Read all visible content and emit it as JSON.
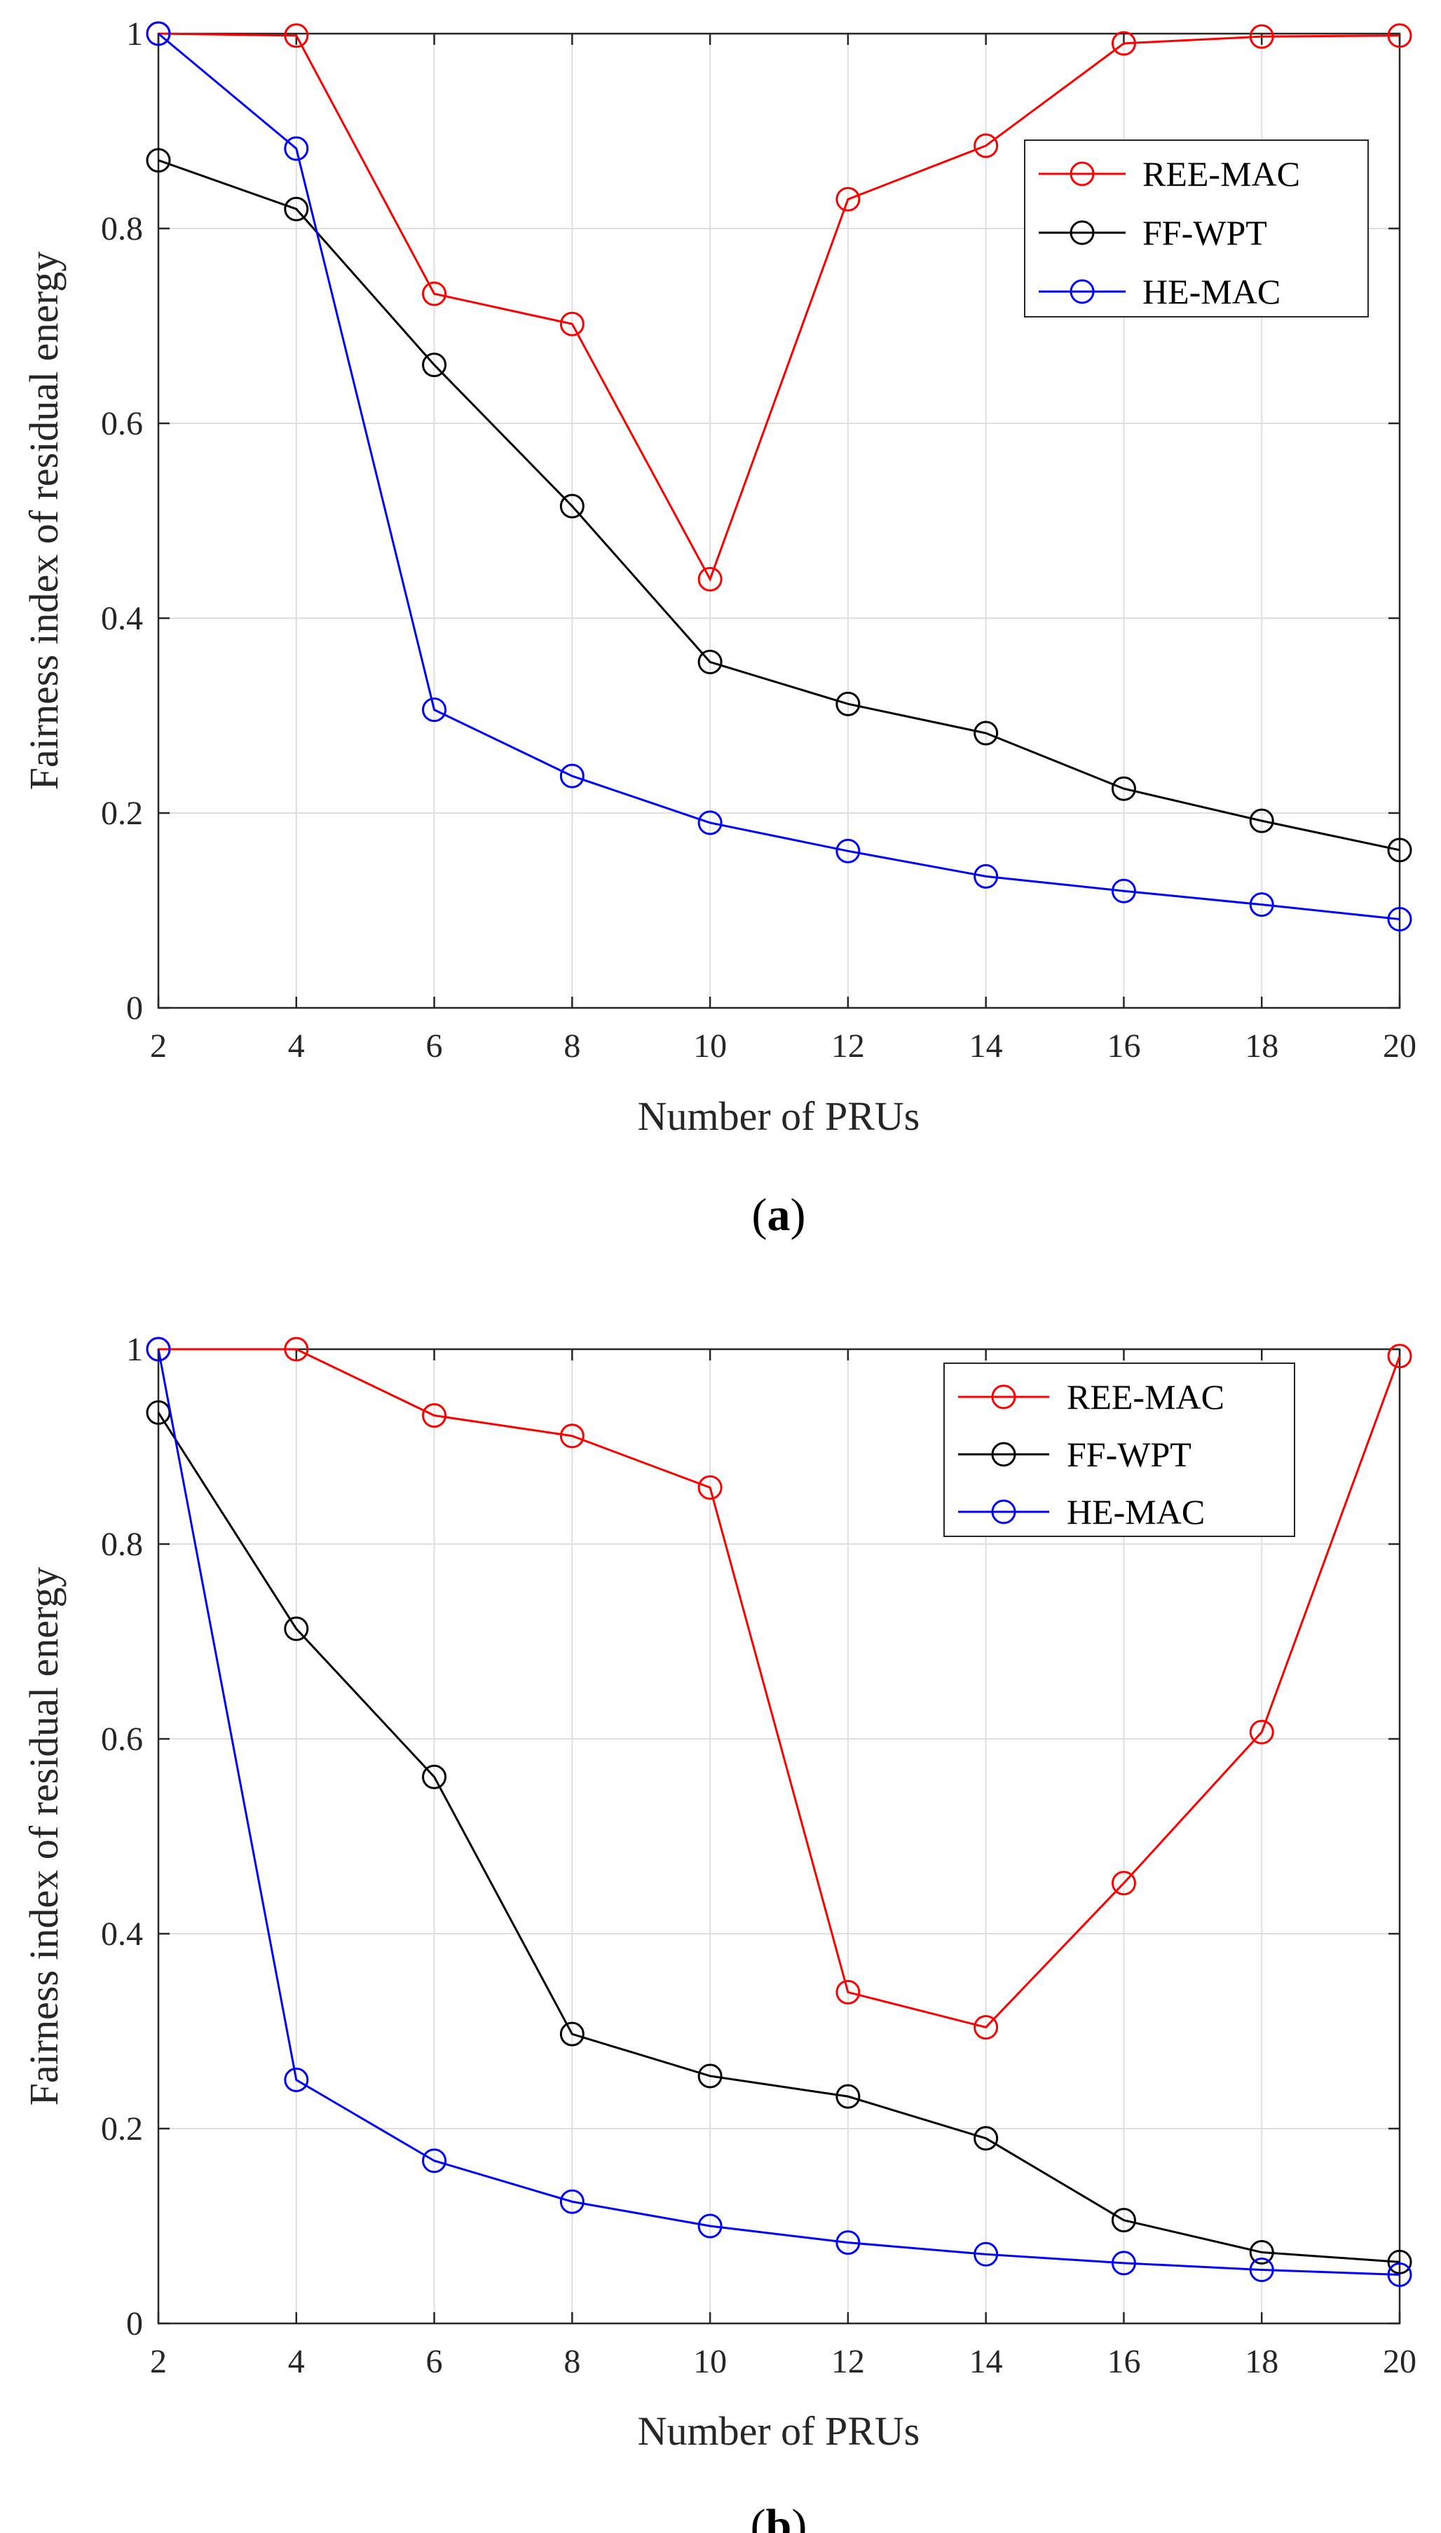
{
  "chart_data": [
    {
      "type": "line",
      "caption_letter": "a",
      "xlabel": "Number of PRUs",
      "ylabel": "Fairness index of residual energy",
      "xlim": [
        2,
        20
      ],
      "ylim": [
        0,
        1
      ],
      "x_ticks": [
        "2",
        "4",
        "6",
        "8",
        "10",
        "12",
        "14",
        "16",
        "18",
        "20"
      ],
      "y_ticks": [
        "0",
        "0.2",
        "0.4",
        "0.6",
        "0.8",
        "1"
      ],
      "grid": true,
      "legend_position": "top-right",
      "x": [
        2,
        4,
        6,
        8,
        10,
        12,
        14,
        16,
        18,
        20
      ],
      "series": [
        {
          "name": "REE-MAC",
          "color": "#ff0000",
          "values": [
            1.0,
            0.998,
            0.733,
            0.702,
            0.44,
            0.83,
            0.885,
            0.99,
            0.997,
            0.998
          ]
        },
        {
          "name": "FF-WPT",
          "color": "#000000",
          "values": [
            0.87,
            0.82,
            0.66,
            0.515,
            0.355,
            0.312,
            0.282,
            0.225,
            0.192,
            0.162
          ]
        },
        {
          "name": "HE-MAC",
          "color": "#0000ff",
          "values": [
            1.0,
            0.882,
            0.306,
            0.238,
            0.19,
            0.161,
            0.135,
            0.12,
            0.106,
            0.091
          ]
        }
      ]
    },
    {
      "type": "line",
      "caption_letter": "b",
      "xlabel": "Number of PRUs",
      "ylabel": "Fairness index of residual energy",
      "xlim": [
        2,
        20
      ],
      "ylim": [
        0,
        1
      ],
      "x_ticks": [
        "2",
        "4",
        "6",
        "8",
        "10",
        "12",
        "14",
        "16",
        "18",
        "20"
      ],
      "y_ticks": [
        "0",
        "0.2",
        "0.4",
        "0.6",
        "0.8",
        "1"
      ],
      "grid": true,
      "legend_position": "top-right",
      "x": [
        2,
        4,
        6,
        8,
        10,
        12,
        14,
        16,
        18,
        20
      ],
      "series": [
        {
          "name": "REE-MAC",
          "color": "#ff0000",
          "values": [
            1.0,
            1.0,
            0.932,
            0.911,
            0.858,
            0.34,
            0.304,
            0.452,
            0.607,
            0.993
          ]
        },
        {
          "name": "FF-WPT",
          "color": "#000000",
          "values": [
            0.935,
            0.713,
            0.561,
            0.297,
            0.254,
            0.233,
            0.19,
            0.106,
            0.073,
            0.063
          ]
        },
        {
          "name": "HE-MAC",
          "color": "#0000ff",
          "values": [
            1.0,
            0.25,
            0.167,
            0.125,
            0.1,
            0.083,
            0.071,
            0.062,
            0.055,
            0.05
          ]
        }
      ]
    }
  ]
}
